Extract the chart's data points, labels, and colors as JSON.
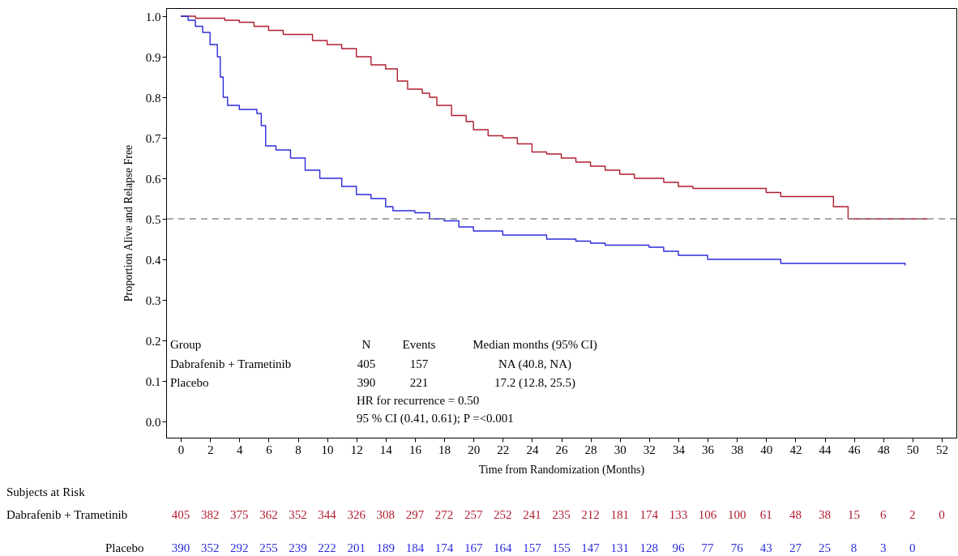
{
  "chart_data": {
    "type": "step",
    "xlabel": "Time from Randomization (Months)",
    "ylabel": "Proportion Alive and Relapse Free",
    "xlim": [
      -1,
      53
    ],
    "xticks": [
      0,
      2,
      4,
      6,
      8,
      10,
      12,
      14,
      16,
      18,
      20,
      22,
      24,
      26,
      28,
      30,
      32,
      34,
      36,
      38,
      40,
      42,
      44,
      46,
      48,
      50,
      52
    ],
    "ylim": [
      -0.04,
      1.02
    ],
    "yticks": [
      {
        "value": 0,
        "label": "0.0"
      },
      0.1,
      0.2,
      0.3,
      0.4,
      0.5,
      0.6,
      0.7,
      0.8,
      0.9,
      {
        "value": 1,
        "label": "1.0"
      }
    ],
    "grid": false,
    "line_style": "solid",
    "series": [
      {
        "color": "#b01c2e",
        "x": [
          0,
          1,
          3,
          4,
          5,
          6,
          7,
          9,
          10,
          11,
          12,
          13,
          14,
          14.8,
          15.5,
          16.5,
          17,
          17.5,
          18.5,
          19.5,
          20,
          21,
          22,
          23,
          24,
          25,
          26,
          27,
          28,
          29,
          30,
          31,
          33,
          34,
          35,
          40,
          41,
          44.6,
          45.6,
          51
        ],
        "values": [
          1.0,
          0.995,
          0.99,
          0.985,
          0.975,
          0.965,
          0.955,
          0.94,
          0.93,
          0.92,
          0.9,
          0.88,
          0.87,
          0.84,
          0.82,
          0.81,
          0.8,
          0.78,
          0.755,
          0.74,
          0.72,
          0.705,
          0.7,
          0.685,
          0.665,
          0.66,
          0.65,
          0.64,
          0.63,
          0.62,
          0.61,
          0.6,
          0.59,
          0.58,
          0.575,
          0.565,
          0.555,
          0.53,
          0.5,
          0.5
        ]
      },
      {
        "color": "#2b2bdc",
        "x": [
          0,
          0.5,
          1,
          1.5,
          2,
          2.5,
          2.7,
          2.9,
          3.2,
          4,
          5.2,
          5.5,
          5.8,
          6.5,
          7.5,
          8.5,
          9.5,
          11,
          12,
          13,
          14,
          14.5,
          16,
          17,
          18,
          19,
          20,
          22,
          25,
          27,
          28,
          29,
          32,
          33,
          34,
          36,
          41,
          49.5
        ],
        "values": [
          1.0,
          0.99,
          0.975,
          0.96,
          0.93,
          0.9,
          0.85,
          0.8,
          0.78,
          0.77,
          0.76,
          0.73,
          0.68,
          0.67,
          0.65,
          0.62,
          0.6,
          0.58,
          0.56,
          0.55,
          0.53,
          0.52,
          0.515,
          0.5,
          0.495,
          0.48,
          0.47,
          0.46,
          0.45,
          0.445,
          0.44,
          0.435,
          0.43,
          0.42,
          0.41,
          0.4,
          0.39,
          0.385
        ]
      }
    ],
    "ref_lines": [
      {
        "axis": "y",
        "value": 0.5,
        "color": "#8c8c8c",
        "line_style": "dashed"
      }
    ],
    "annotations": [
      "Group",
      "N",
      "Events",
      "Median months (95% CI)",
      "Dabrafenib + Trametinib",
      "405",
      "157",
      "NA (40.8, NA)",
      "Placebo",
      "390",
      "221",
      "17.2 (12.8, 25.5)",
      "HR for recurrence = 0.50",
      "95 % CI (0.41, 0.61); P =<0.001",
      "Subjects at Risk",
      "Dabrafenib + Trametinib",
      "405",
      "382",
      "375",
      "362",
      "352",
      "344",
      "326",
      "308",
      "297",
      "272",
      "257",
      "252",
      "241",
      "235",
      "212",
      "181",
      "174",
      "133",
      "106",
      "100",
      "61",
      "48",
      "38",
      "15",
      "6",
      "2",
      "0",
      "Placebo",
      "390",
      "352",
      "292",
      "255",
      "239",
      "222",
      "201",
      "189",
      "184",
      "174",
      "167",
      "164",
      "157",
      "155",
      "147",
      "131",
      "128",
      "96",
      "77",
      "76",
      "43",
      "27",
      "25",
      "8",
      "3",
      "0"
    ]
  }
}
